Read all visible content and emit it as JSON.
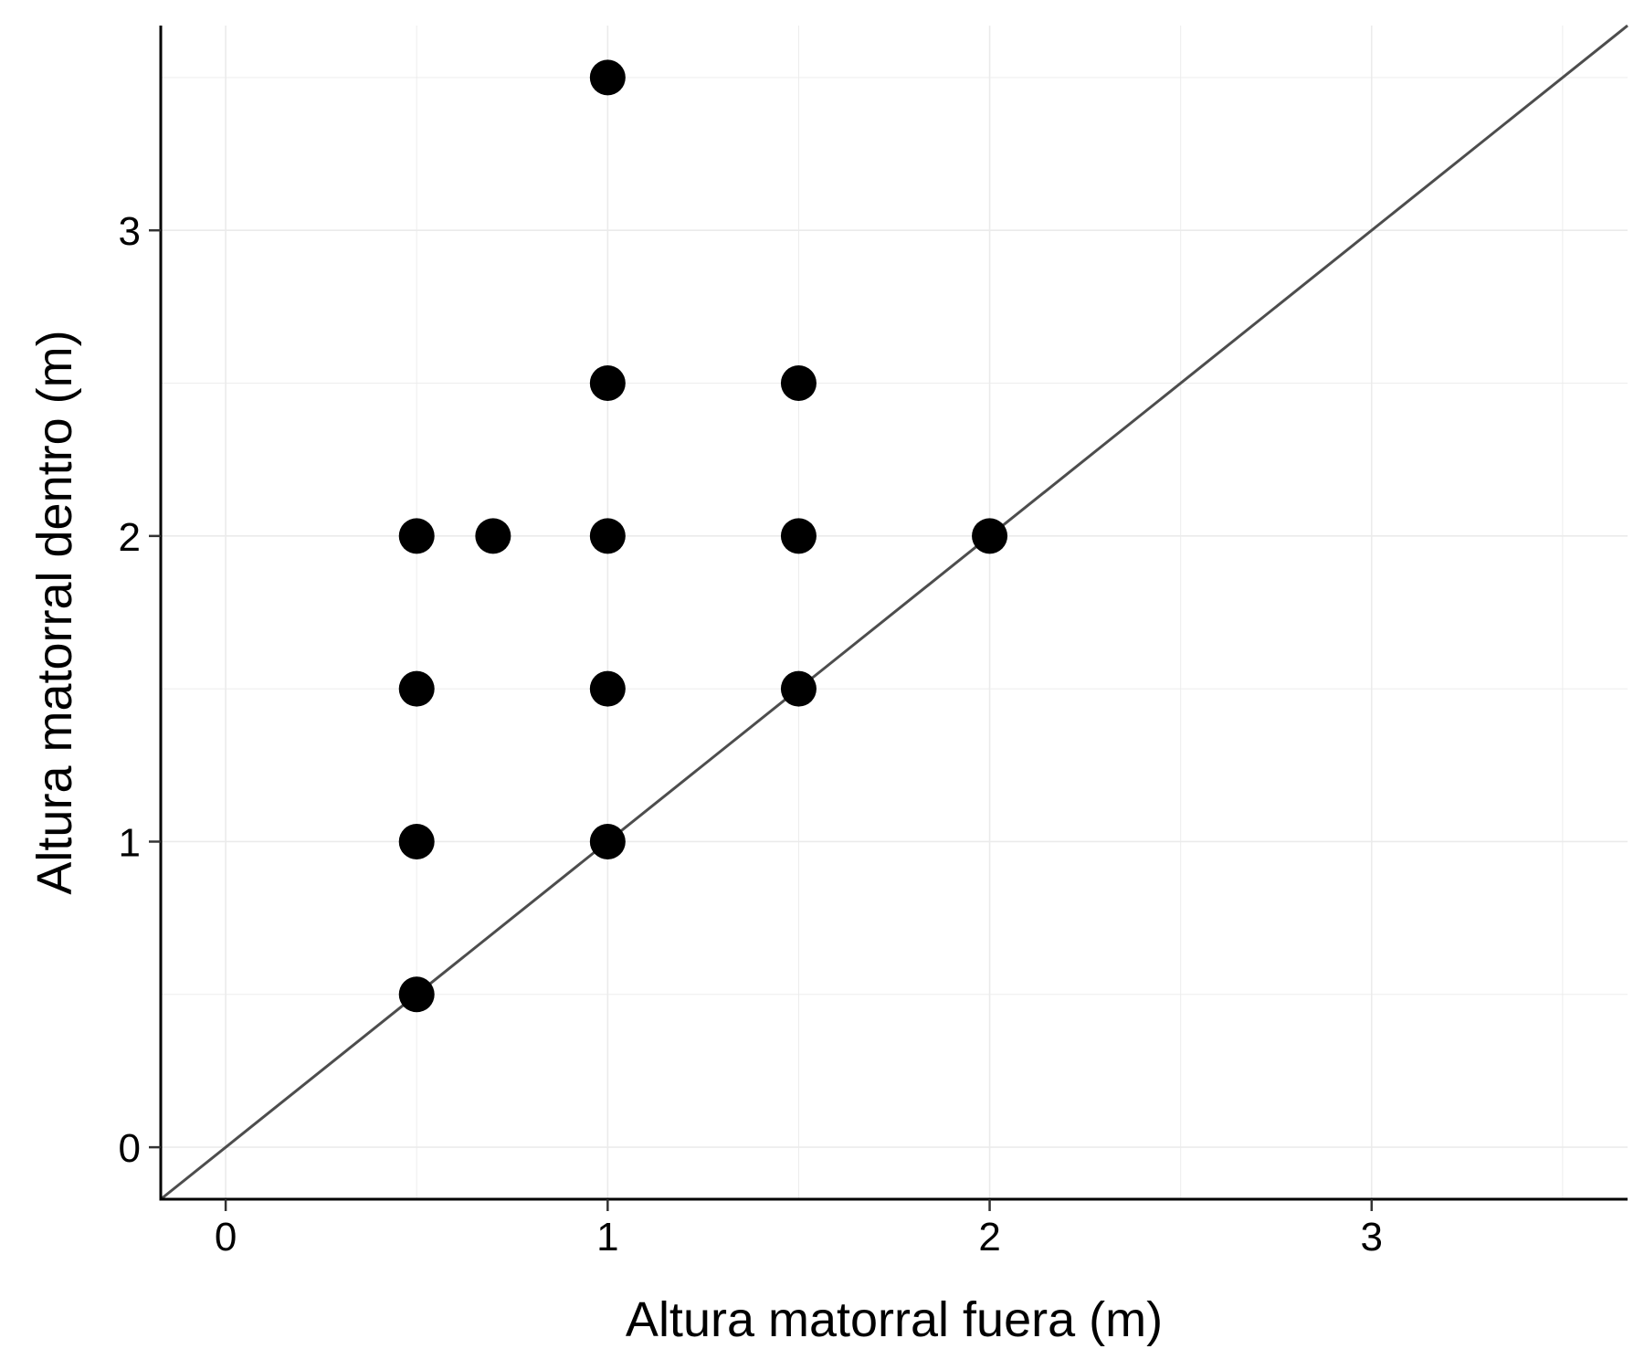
{
  "chart_data": {
    "type": "scatter",
    "title": "",
    "xlabel": "Altura matorral fuera (m)",
    "ylabel": "Altura matorral dentro (m)",
    "xlim": [
      -0.17,
      3.67
    ],
    "ylim": [
      -0.17,
      3.67
    ],
    "xticks": [
      0,
      1,
      2,
      3
    ],
    "yticks": [
      0,
      1,
      2,
      3
    ],
    "xtick_labels": [
      "0",
      "1",
      "2",
      "3"
    ],
    "ytick_labels": [
      "0",
      "1",
      "2",
      "3"
    ],
    "grid": true,
    "reference_line": {
      "type": "identity",
      "slope": 1,
      "intercept": 0,
      "color": "#4d4d4d"
    },
    "point_color": "#000000",
    "grid_color": "#ebebeb",
    "points": [
      {
        "x": 0.5,
        "y": 0.5
      },
      {
        "x": 0.5,
        "y": 1.0
      },
      {
        "x": 0.5,
        "y": 1.5
      },
      {
        "x": 0.5,
        "y": 2.0
      },
      {
        "x": 0.7,
        "y": 2.0
      },
      {
        "x": 1.0,
        "y": 1.0
      },
      {
        "x": 1.0,
        "y": 1.5
      },
      {
        "x": 1.0,
        "y": 2.0
      },
      {
        "x": 1.0,
        "y": 2.5
      },
      {
        "x": 1.0,
        "y": 3.5
      },
      {
        "x": 1.5,
        "y": 1.5
      },
      {
        "x": 1.5,
        "y": 2.0
      },
      {
        "x": 1.5,
        "y": 2.5
      },
      {
        "x": 2.0,
        "y": 2.0
      }
    ]
  }
}
